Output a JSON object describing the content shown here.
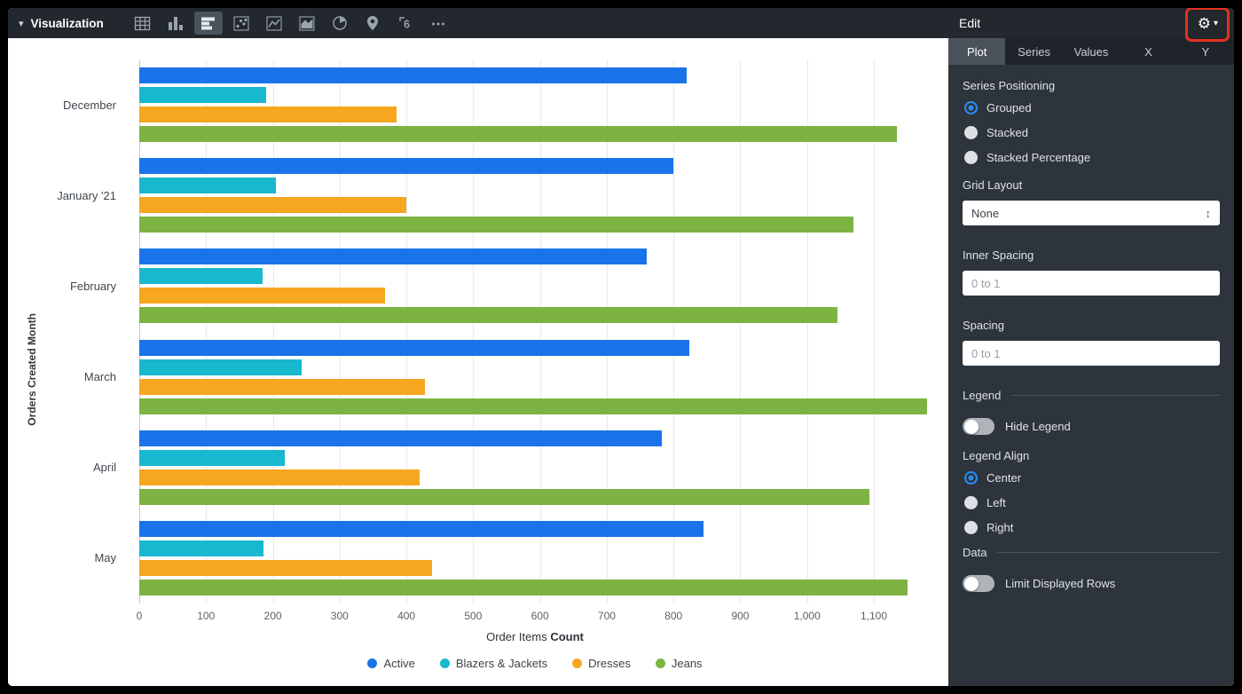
{
  "toolbar": {
    "title": "Visualization",
    "chart_types": [
      "table",
      "column",
      "bar",
      "scatter",
      "line",
      "area",
      "pie",
      "map",
      "single-value",
      "more"
    ],
    "selected": "bar"
  },
  "chart_data": {
    "type": "bar",
    "orientation": "horizontal",
    "categories": [
      "December",
      "January '21",
      "February",
      "March",
      "April",
      "May"
    ],
    "series": [
      {
        "name": "Active",
        "color": "#1a73e8",
        "values": [
          820,
          800,
          760,
          823,
          783,
          845
        ]
      },
      {
        "name": "Blazers & Jackets",
        "color": "#18b8ce",
        "values": [
          190,
          205,
          185,
          243,
          218,
          186
        ]
      },
      {
        "name": "Dresses",
        "color": "#f6a61f",
        "values": [
          385,
          400,
          368,
          428,
          420,
          438
        ]
      },
      {
        "name": "Jeans",
        "color": "#7cb342",
        "values": [
          1135,
          1070,
          1045,
          1180,
          1093,
          1150
        ]
      }
    ],
    "ylabel": "Orders Created Month",
    "xlabel_regular": "Order Items ",
    "xlabel_bold": "Count",
    "xmax": 1185,
    "grid": true,
    "legend_position": "bottom",
    "x_ticks": [
      {
        "value": 0,
        "label": "0"
      },
      {
        "value": 100,
        "label": "100"
      },
      {
        "value": 200,
        "label": "200"
      },
      {
        "value": 300,
        "label": "300"
      },
      {
        "value": 400,
        "label": "400"
      },
      {
        "value": 500,
        "label": "500"
      },
      {
        "value": 600,
        "label": "600"
      },
      {
        "value": 700,
        "label": "700"
      },
      {
        "value": 800,
        "label": "800"
      },
      {
        "value": 900,
        "label": "900"
      },
      {
        "value": 1000,
        "label": "1,000"
      },
      {
        "value": 1100,
        "label": "1,100"
      }
    ]
  },
  "panel": {
    "header": "Edit",
    "tabs": [
      {
        "label": "Plot",
        "selected": true
      },
      {
        "label": "Series",
        "selected": false
      },
      {
        "label": "Values",
        "selected": false
      },
      {
        "label": "X",
        "selected": false
      },
      {
        "label": "Y",
        "selected": false
      }
    ],
    "series_positioning": {
      "label": "Series Positioning",
      "options": [
        "Grouped",
        "Stacked",
        "Stacked Percentage"
      ],
      "selected": "Grouped"
    },
    "grid_layout": {
      "label": "Grid Layout",
      "value": "None"
    },
    "inner_spacing": {
      "label": "Inner Spacing",
      "placeholder": "0 to 1",
      "value": ""
    },
    "spacing": {
      "label": "Spacing",
      "placeholder": "0 to 1",
      "value": ""
    },
    "legend": {
      "section": "Legend",
      "hide_legend_label": "Hide Legend",
      "hide_legend_on": false
    },
    "legend_align": {
      "label": "Legend Align",
      "options": [
        "Center",
        "Left",
        "Right"
      ],
      "selected": "Center"
    },
    "data": {
      "section": "Data",
      "limit_rows_label": "Limit Displayed Rows",
      "limit_rows_on": false
    }
  },
  "annotation": {
    "target": "settings-gear",
    "color": "#e8301f"
  }
}
